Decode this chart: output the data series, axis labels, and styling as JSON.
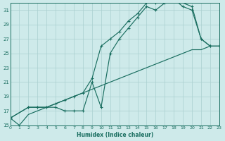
{
  "bg_color": "#ceeaea",
  "grid_color": "#aacfcf",
  "line_color": "#1a6e60",
  "xlabel": "Humidex (Indice chaleur)",
  "xlim": [
    0,
    23
  ],
  "ylim": [
    15,
    32
  ],
  "yticks": [
    15,
    17,
    19,
    21,
    23,
    25,
    27,
    29,
    31
  ],
  "xticks": [
    0,
    1,
    2,
    3,
    4,
    5,
    6,
    7,
    8,
    9,
    10,
    11,
    12,
    13,
    14,
    15,
    16,
    17,
    18,
    19,
    20,
    21,
    22,
    23
  ],
  "line1": {
    "x": [
      0,
      1,
      2,
      3,
      4,
      5,
      6,
      7,
      8,
      9,
      10,
      11,
      12,
      13,
      14,
      15,
      16,
      17,
      18,
      19,
      20,
      21,
      22,
      23
    ],
    "y": [
      16.0,
      15.0,
      16.5,
      17.0,
      17.5,
      18.0,
      18.5,
      19.0,
      19.5,
      20.0,
      20.5,
      21.0,
      21.5,
      22.0,
      22.5,
      23.0,
      23.5,
      24.0,
      24.5,
      25.0,
      25.5,
      25.5,
      26.0,
      26.0
    ],
    "markers": false
  },
  "line2": {
    "x": [
      0,
      2,
      3,
      4,
      5,
      6,
      7,
      8,
      9,
      10,
      11,
      12,
      13,
      14,
      15,
      16,
      17,
      18,
      19,
      20,
      21,
      22,
      23
    ],
    "y": [
      16.0,
      17.5,
      17.5,
      17.5,
      17.5,
      17.0,
      17.0,
      17.0,
      21.0,
      17.5,
      25.0,
      27.0,
      28.5,
      30.0,
      31.5,
      31.0,
      32.0,
      32.5,
      31.5,
      31.0,
      27.0,
      26.0,
      26.0
    ],
    "markers": true
  },
  "line3": {
    "x": [
      0,
      2,
      3,
      4,
      5,
      6,
      7,
      8,
      9,
      10,
      11,
      12,
      13,
      14,
      15,
      16,
      17,
      18,
      20,
      21,
      22,
      23
    ],
    "y": [
      16.0,
      17.5,
      17.5,
      17.5,
      18.0,
      18.5,
      19.0,
      19.5,
      21.5,
      26.0,
      27.0,
      28.0,
      29.5,
      30.5,
      32.0,
      32.0,
      32.5,
      32.5,
      31.5,
      27.0,
      26.0,
      26.0
    ],
    "markers": true
  }
}
